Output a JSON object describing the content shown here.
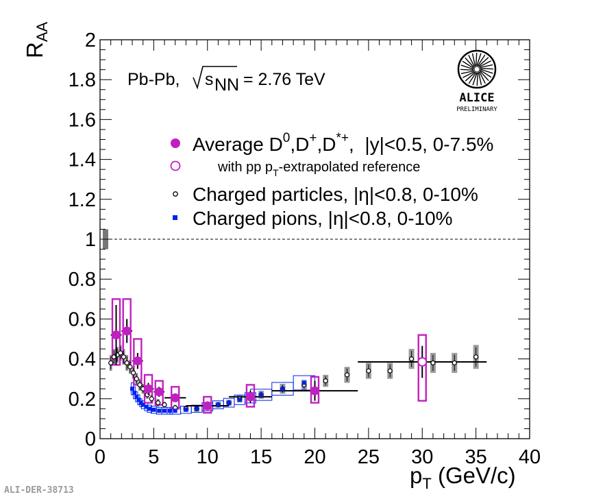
{
  "chart_data": {
    "type": "scatter",
    "title": "",
    "ylabel": "R_AA",
    "xlabel": "p_T (GeV/c)",
    "xlim": [
      0,
      40
    ],
    "ylim": [
      0,
      2
    ],
    "x_ticks": [
      0,
      5,
      10,
      15,
      20,
      25,
      30,
      35,
      40
    ],
    "y_ticks": [
      0,
      0.2,
      0.4,
      0.6,
      0.8,
      1,
      1.2,
      1.4,
      1.6,
      1.8,
      2
    ],
    "y_tick_labels": [
      "0",
      "0.2",
      "0.4",
      "0.6",
      "0.8",
      "1",
      "1.2",
      "1.4",
      "1.6",
      "1.8",
      "2"
    ],
    "reference_line": 1,
    "normalization_uncertainty": {
      "y_low": 0.95,
      "y_high": 1.05
    },
    "annotation": {
      "system": "Pb-Pb,",
      "sqrt_sym": "√",
      "s_label": "s",
      "nn_sub": "NN",
      "energy": " = 2.76 TeV"
    },
    "legend": {
      "dmeson_part1": "Average D",
      "dmeson_sup0": "0",
      "dmeson_comma": ",D",
      "dmeson_supplus": "+",
      "dmeson_comma2": ",D",
      "dmeson_supstar": "*+",
      "dmeson_rest": ",  |y|<0.5, 0-7.5%",
      "ppref_part1": "with pp p",
      "ppref_sub": "T",
      "ppref_rest": "-extrapolated reference",
      "charged": "Charged particles, |η|<0.8, 0-10%",
      "pions": "Charged pions, |η|<0.8, 0-10%"
    },
    "logo": {
      "name": "ALICE",
      "sub": "PRELIMINARY"
    },
    "footer": "ALI-DER-38713",
    "series": [
      {
        "name": "Average D0,D+,D*+, |y|<0.5, 0-7.5%",
        "marker": "filled-circle",
        "color": "#c020c0",
        "points": [
          {
            "x": 1.5,
            "xlo": 1,
            "xhi": 2,
            "y": 0.52,
            "elo": 0.15,
            "ehi": 0.15,
            "sys_lo": 0.37,
            "sys_hi": 0.7
          },
          {
            "x": 2.5,
            "xlo": 2,
            "xhi": 3,
            "y": 0.54,
            "elo": 0.06,
            "ehi": 0.06,
            "sys_lo": 0.38,
            "sys_hi": 0.7
          },
          {
            "x": 3.5,
            "xlo": 3,
            "xhi": 4,
            "y": 0.39,
            "elo": 0.04,
            "ehi": 0.04,
            "sys_lo": 0.27,
            "sys_hi": 0.5
          },
          {
            "x": 4.5,
            "xlo": 4,
            "xhi": 5,
            "y": 0.25,
            "elo": 0.03,
            "ehi": 0.03,
            "sys_lo": 0.18,
            "sys_hi": 0.32
          },
          {
            "x": 5.5,
            "xlo": 5,
            "xhi": 6,
            "y": 0.235,
            "elo": 0.025,
            "ehi": 0.025,
            "sys_lo": 0.17,
            "sys_hi": 0.29
          },
          {
            "x": 7,
            "xlo": 6,
            "xhi": 8,
            "y": 0.205,
            "elo": 0.02,
            "ehi": 0.02,
            "sys_lo": 0.15,
            "sys_hi": 0.26
          },
          {
            "x": 10,
            "xlo": 8,
            "xhi": 12,
            "y": 0.165,
            "elo": 0.02,
            "ehi": 0.02,
            "sys_lo": 0.13,
            "sys_hi": 0.21
          },
          {
            "x": 14,
            "xlo": 12,
            "xhi": 16,
            "y": 0.21,
            "elo": 0.03,
            "ehi": 0.03,
            "sys_lo": 0.16,
            "sys_hi": 0.27
          },
          {
            "x": 20,
            "xlo": 16,
            "xhi": 24,
            "y": 0.24,
            "elo": 0.05,
            "ehi": 0.05,
            "sys_lo": 0.18,
            "sys_hi": 0.31
          }
        ]
      },
      {
        "name": "with pp pT-extrapolated reference",
        "marker": "open-circle",
        "color": "#c020c0",
        "points": [
          {
            "x": 30,
            "xlo": 24,
            "xhi": 36,
            "y": 0.385,
            "elo": 0.08,
            "ehi": 0.08,
            "sys_lo": 0.19,
            "sys_hi": 0.52
          }
        ]
      },
      {
        "name": "Charged particles, |η|<0.8, 0-10%",
        "marker": "open-circle-small",
        "color": "#000000",
        "points": [
          {
            "x": 1.0,
            "y": 0.38,
            "sys": 0.04
          },
          {
            "x": 1.3,
            "y": 0.41,
            "sys": 0.04
          },
          {
            "x": 1.6,
            "y": 0.42,
            "sys": 0.04
          },
          {
            "x": 1.9,
            "y": 0.43,
            "sys": 0.04
          },
          {
            "x": 2.2,
            "y": 0.41,
            "sys": 0.04
          },
          {
            "x": 2.5,
            "y": 0.38,
            "sys": 0.04
          },
          {
            "x": 2.8,
            "y": 0.36,
            "sys": 0.035
          },
          {
            "x": 3.1,
            "y": 0.33,
            "sys": 0.03
          },
          {
            "x": 3.4,
            "y": 0.3,
            "sys": 0.03
          },
          {
            "x": 3.7,
            "y": 0.27,
            "sys": 0.03
          },
          {
            "x": 4.0,
            "y": 0.25,
            "sys": 0.025
          },
          {
            "x": 4.4,
            "y": 0.22,
            "sys": 0.02
          },
          {
            "x": 4.8,
            "y": 0.2,
            "sys": 0.02
          },
          {
            "x": 5.4,
            "y": 0.18,
            "sys": 0.02
          },
          {
            "x": 6.0,
            "y": 0.17,
            "sys": 0.015
          },
          {
            "x": 7.0,
            "y": 0.155,
            "sys": 0.015
          },
          {
            "x": 8.0,
            "y": 0.15,
            "sys": 0.015
          },
          {
            "x": 9.0,
            "y": 0.15,
            "sys": 0.015
          },
          {
            "x": 10.0,
            "y": 0.16,
            "sys": 0.015
          },
          {
            "x": 11.0,
            "y": 0.17,
            "sys": 0.015
          },
          {
            "x": 12.0,
            "y": 0.18,
            "sys": 0.015
          },
          {
            "x": 13.0,
            "y": 0.2,
            "sys": 0.018
          },
          {
            "x": 14.0,
            "y": 0.21,
            "sys": 0.018
          },
          {
            "x": 15.0,
            "y": 0.22,
            "sys": 0.02
          },
          {
            "x": 17.0,
            "y": 0.25,
            "sys": 0.025
          },
          {
            "x": 19.0,
            "y": 0.27,
            "sys": 0.025
          },
          {
            "x": 21.0,
            "y": 0.29,
            "sys": 0.03
          },
          {
            "x": 23.0,
            "y": 0.32,
            "sys": 0.04
          },
          {
            "x": 25.0,
            "y": 0.34,
            "sys": 0.04
          },
          {
            "x": 27.0,
            "y": 0.34,
            "sys": 0.04
          },
          {
            "x": 29.0,
            "y": 0.4,
            "sys": 0.05
          },
          {
            "x": 31.0,
            "y": 0.38,
            "sys": 0.05
          },
          {
            "x": 33.0,
            "y": 0.38,
            "sys": 0.05
          },
          {
            "x": 35.0,
            "y": 0.41,
            "sys": 0.06
          }
        ]
      },
      {
        "name": "Charged pions, |η|<0.8, 0-10%",
        "marker": "filled-square",
        "color": "#0022ee",
        "points": [
          {
            "x": 3.0,
            "y": 0.25,
            "sys": 0.03
          },
          {
            "x": 3.2,
            "y": 0.23,
            "sys": 0.03
          },
          {
            "x": 3.4,
            "y": 0.21,
            "sys": 0.025
          },
          {
            "x": 3.6,
            "y": 0.195,
            "sys": 0.025
          },
          {
            "x": 3.8,
            "y": 0.18,
            "sys": 0.02
          },
          {
            "x": 4.0,
            "y": 0.17,
            "sys": 0.02
          },
          {
            "x": 4.3,
            "y": 0.16,
            "sys": 0.02
          },
          {
            "x": 4.6,
            "y": 0.15,
            "sys": 0.018
          },
          {
            "x": 5.0,
            "y": 0.145,
            "sys": 0.018
          },
          {
            "x": 5.5,
            "y": 0.14,
            "sys": 0.017
          },
          {
            "x": 6.0,
            "y": 0.14,
            "sys": 0.017
          },
          {
            "x": 6.5,
            "y": 0.14,
            "sys": 0.017
          },
          {
            "x": 7.0,
            "y": 0.14,
            "sys": 0.017
          },
          {
            "x": 8.0,
            "y": 0.145,
            "sys": 0.018
          },
          {
            "x": 9.0,
            "y": 0.15,
            "sys": 0.018
          },
          {
            "x": 10.0,
            "y": 0.16,
            "sys": 0.02
          },
          {
            "x": 11.0,
            "y": 0.17,
            "sys": 0.02
          },
          {
            "x": 12.0,
            "y": 0.18,
            "sys": 0.022
          },
          {
            "x": 13.0,
            "y": 0.195,
            "sys": 0.024
          },
          {
            "x": 14.0,
            "y": 0.205,
            "sys": 0.026
          },
          {
            "x": 15.0,
            "y": 0.22,
            "sys": 0.028
          },
          {
            "x": 17.0,
            "y": 0.25,
            "sys": 0.032
          },
          {
            "x": 19.0,
            "y": 0.28,
            "sys": 0.036
          }
        ]
      }
    ]
  }
}
